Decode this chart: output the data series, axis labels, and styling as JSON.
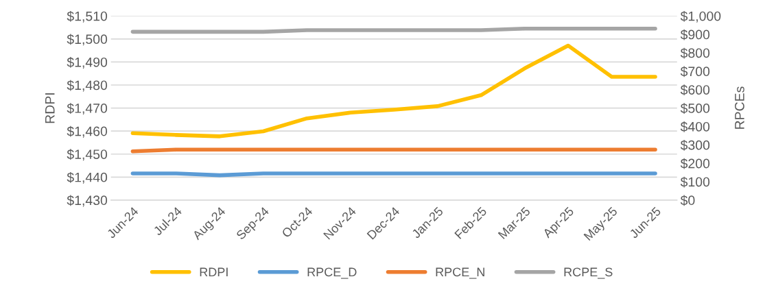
{
  "chart_data": {
    "type": "line",
    "categories": [
      "Jun-24",
      "Jul-24",
      "Aug-24",
      "Sep-24",
      "Oct-24",
      "Nov-24",
      "Dec-24",
      "Jan-25",
      "Feb-25",
      "Mar-25",
      "Apr-25",
      "May-25",
      "Jun-25"
    ],
    "ylabel": "RDPI",
    "y2label": "RPCEs",
    "ylim": [
      1430,
      1510
    ],
    "yticks": [
      {
        "value": 1430,
        "label": "$1,430"
      },
      {
        "value": 1440,
        "label": "$1,440"
      },
      {
        "value": 1450,
        "label": "$1,450"
      },
      {
        "value": 1460,
        "label": "$1,460"
      },
      {
        "value": 1470,
        "label": "$1,470"
      },
      {
        "value": 1480,
        "label": "$1,480"
      },
      {
        "value": 1490,
        "label": "$1,490"
      },
      {
        "value": 1500,
        "label": "$1,500"
      },
      {
        "value": 1510,
        "label": "$1,510"
      }
    ],
    "y2lim": [
      0,
      1000
    ],
    "y2ticks": [
      {
        "value": 0,
        "label": "$0"
      },
      {
        "value": 100,
        "label": "$100"
      },
      {
        "value": 200,
        "label": "$200"
      },
      {
        "value": 300,
        "label": "$300"
      },
      {
        "value": 400,
        "label": "$400"
      },
      {
        "value": 500,
        "label": "$500"
      },
      {
        "value": 600,
        "label": "$600"
      },
      {
        "value": 700,
        "label": "$700"
      },
      {
        "value": 800,
        "label": "$800"
      },
      {
        "value": 900,
        "label": "$900"
      },
      {
        "value": 1000,
        "label": "$1,000"
      }
    ],
    "grid": "y",
    "legend": "bottom",
    "marker": "none",
    "line_style": "solid",
    "series": [
      {
        "name": "RDPI",
        "color": "#ffc000",
        "values": [
          1459.1,
          1458.3,
          1457.7,
          1459.9,
          1465.5,
          1468.0,
          1469.3,
          1470.8,
          1475.6,
          1487.2,
          1497.1,
          1483.6,
          1483.6
        ]
      },
      {
        "name": "RPCE_D",
        "color": "#5b9bd5",
        "axis": "y2",
        "values": [
          145,
          145,
          135,
          145,
          145,
          145,
          145,
          145,
          145,
          145,
          145,
          145,
          145
        ]
      },
      {
        "name": "RPCE_N",
        "color": "#ed7d31",
        "axis": "y2",
        "values": [
          265,
          274,
          274,
          274,
          274,
          274,
          274,
          274,
          274,
          274,
          274,
          274,
          274
        ]
      },
      {
        "name": "RCPE_S",
        "color": "#a5a5a5",
        "axis": "y2",
        "values": [
          914,
          914,
          914,
          914,
          923,
          923,
          923,
          923,
          923,
          931,
          931,
          931,
          931
        ]
      }
    ]
  }
}
